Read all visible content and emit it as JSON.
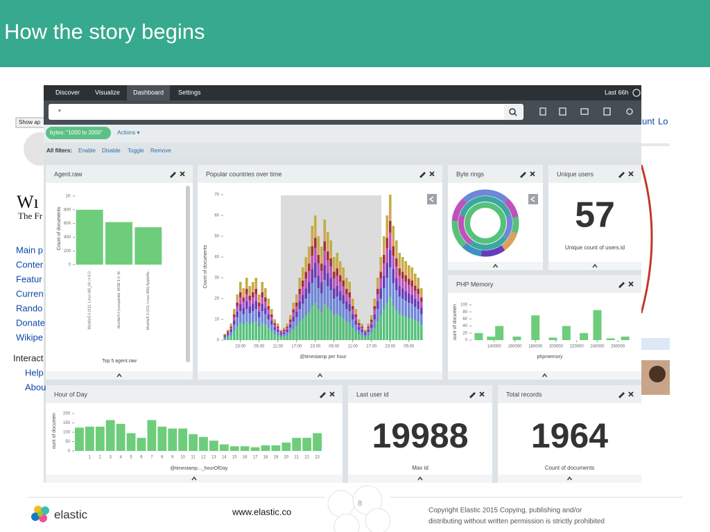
{
  "slide": {
    "title": "How the story begins",
    "page_number": 8,
    "footer": {
      "brand": "elastic",
      "url": "www.elastic.co",
      "copyright": [
        "Copyright Elastic 2015 Copying, publishing and/or",
        "distributing without written permission is strictly prohibited"
      ]
    }
  },
  "background_page": {
    "button": "Show ap",
    "logo": "Wı",
    "tagline": "The Fr",
    "links": [
      "Main p",
      "Conter",
      "Featur",
      "Curren",
      "Rando",
      "Donate",
      "Wikipe"
    ],
    "section": "Interact",
    "sublinks": [
      "Help",
      "Abou"
    ],
    "top_right": [
      "unt",
      "Lo"
    ]
  },
  "kibana": {
    "nav": [
      "Discover",
      "Visualize",
      "Dashboard",
      "Settings"
    ],
    "time": "Last 66h",
    "query": "*",
    "filter": "bytes: \"1000 to 2000\"",
    "actions": "Actions ▾",
    "filter_bar": {
      "label": "All filters:",
      "actions": [
        "Enable",
        "Disable",
        "Toggle",
        "Remove"
      ]
    },
    "panels": [
      {
        "title": "Agent.raw",
        "chart": {
          "type": "bar",
          "x_label": "Top 5 agent.raw",
          "y_label": "Count of documents",
          "categories": [
            "Mozilla/5.0 (X11; Linux x86_64; rv:6.0...",
            "Mozilla/4.0 (compatible; MSIE 6.0; W...",
            "Mozilla/5.0 (X11; Linux i686) AppleWe..."
          ],
          "values": [
            800,
            620,
            545
          ],
          "color": "#6dcd7b",
          "ylim": [
            0,
            1000
          ],
          "yticks": [
            0,
            200,
            400,
            600,
            800,
            {
              "value": 1000,
              "label": "1K"
            }
          ]
        }
      },
      {
        "title": "Popular countries over time",
        "chart": {
          "type": "stacked-bar",
          "x_label": "@timestamp per hour",
          "y_label": "Count of documents",
          "values": [
            3,
            5,
            8,
            15,
            22,
            28,
            25,
            30,
            26,
            28,
            30,
            22,
            28,
            25,
            20,
            15,
            10,
            8,
            5,
            6,
            8,
            12,
            18,
            22,
            30,
            35,
            40,
            45,
            55,
            60,
            50,
            45,
            58,
            52,
            48,
            40,
            42,
            38,
            35,
            30,
            28,
            20,
            15,
            10,
            8,
            5,
            8,
            12,
            20,
            30,
            40,
            50,
            60,
            70,
            55,
            48,
            42,
            40,
            38,
            36,
            35,
            32,
            30,
            25
          ],
          "ylim": [
            0,
            70
          ],
          "yticks": [
            0,
            10,
            20,
            30,
            40,
            50,
            60,
            70
          ],
          "xlim": [
            0,
            64
          ],
          "xticks": [
            {
              "value": 5,
              "label": "23:00"
            },
            {
              "value": 11,
              "label": "05:00"
            },
            {
              "value": 17,
              "label": "11:00"
            },
            {
              "value": 23,
              "label": "17:00"
            },
            {
              "value": 29,
              "label": "23:00"
            },
            {
              "value": 35,
              "label": "05:00"
            },
            {
              "value": 41,
              "label": "11:00"
            },
            {
              "value": 47,
              "label": "17:00"
            },
            {
              "value": 53,
              "label": "23:00"
            },
            {
              "value": 59,
              "label": "05:00"
            }
          ]
        }
      },
      {
        "title": "Byte rings"
      },
      {
        "title": "Unique users",
        "metric": {
          "value": 57,
          "label": "Unique count of users.id"
        }
      },
      {
        "title": "PHP Memory",
        "chart": {
          "type": "bar",
          "x_label": "phpmemory",
          "y_label": "ount of documen",
          "x": [
            125000,
            137000,
            145000,
            162000,
            180000,
            197000,
            210000,
            227000,
            240000,
            253000,
            267000
          ],
          "values": [
            20,
            10,
            40,
            10,
            70,
            7,
            40,
            20,
            85,
            5,
            10
          ],
          "color": "#6dcd7b",
          "xlim": [
            118000,
            276000
          ],
          "xticks": [
            140000,
            160000,
            180000,
            200000,
            220000,
            240000,
            260000
          ],
          "ylim": [
            0,
            100
          ],
          "yticks": [
            0,
            20,
            40,
            60,
            80,
            100
          ]
        }
      },
      {
        "title": "Hour of Day",
        "chart": {
          "type": "bar",
          "x_label": "@timestamp..._hourOfDay",
          "y_label": "ount of documen",
          "categories": [
            null,
            "1",
            "2",
            "3",
            "4",
            "5",
            "6",
            "7",
            "8",
            "9",
            "10",
            "11",
            "12",
            "13",
            "14",
            "15",
            "16",
            "17",
            "18",
            "19",
            "20",
            "21",
            "22",
            "23"
          ],
          "values": [
            125,
            130,
            130,
            165,
            145,
            95,
            70,
            165,
            130,
            120,
            120,
            90,
            75,
            55,
            35,
            25,
            25,
            20,
            30,
            30,
            45,
            70,
            70,
            95
          ],
          "color": "#6dcd7b",
          "ylim": [
            0,
            200
          ],
          "yticks": [
            0,
            50,
            100,
            150,
            200
          ]
        }
      },
      {
        "title": "Last user id",
        "metric": {
          "value": 19988,
          "label": "Max id"
        }
      },
      {
        "title": "Total records",
        "metric": {
          "value": 1964,
          "label": "Count of documents"
        }
      }
    ]
  }
}
